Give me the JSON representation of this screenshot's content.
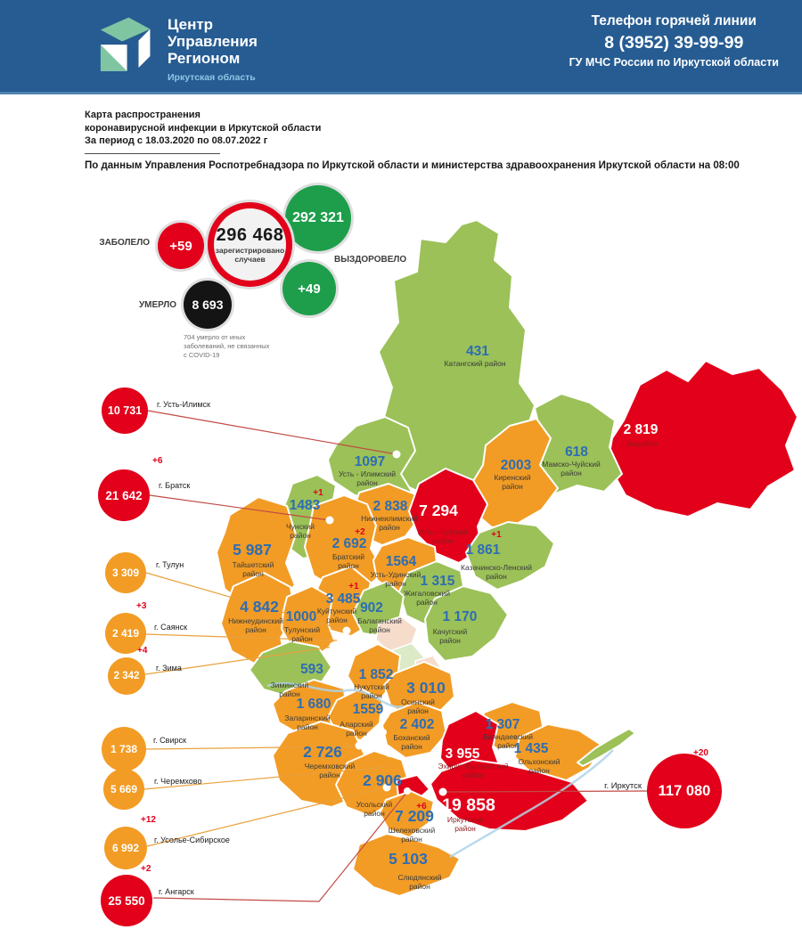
{
  "header": {
    "logo": {
      "title": "Центр|Управления|Регионом",
      "subtitle": "Иркутская область"
    },
    "hotline": {
      "label": "Телефон горячей линии",
      "phone": "8 (3952) 39-99-99",
      "agency": "ГУ МЧС России по Иркутской области"
    }
  },
  "intro": {
    "title": "Карта распространения|коронавирусной инфекции в Иркутской области|За период с 18.03.2020 по 08.07.2022 г",
    "source": "По данным Управления Роспотребнадзора по Иркутской области и министерства здравоохранения Иркутской области на 08:00"
  },
  "stats": {
    "infected": {
      "label": "ЗАБОЛЕЛО",
      "delta": "+59"
    },
    "registered": {
      "value": "296 468",
      "caption_line1": "зарегистрировано",
      "caption_line2": "случаев"
    },
    "recovered": {
      "label": "ВЫЗДОРОВЕЛО",
      "value": "292 321",
      "delta": "+49"
    },
    "died": {
      "label": "УМЕРЛО",
      "value": "8 693",
      "note": "704 умерло от иных|заболеваний, не связанных|с COVID-19"
    }
  },
  "cities": [
    {
      "name": "г. Усть-Илимск",
      "value": "10 731",
      "delta": "",
      "level": "red"
    },
    {
      "name": "г. Братск",
      "value": "21 642",
      "delta": "+6",
      "level": "red"
    },
    {
      "name": "г. Тулун",
      "value": "3 309",
      "delta": "",
      "level": "orange"
    },
    {
      "name": "г. Саянск",
      "value": "2 419",
      "delta": "+3",
      "level": "orange"
    },
    {
      "name": "г. Зима",
      "value": "2 342",
      "delta": "+4",
      "level": "orange"
    },
    {
      "name": "г. Свирск",
      "value": "1 738",
      "delta": "",
      "level": "orange"
    },
    {
      "name": "г. Черемхово",
      "value": "5 669",
      "delta": "",
      "level": "orange"
    },
    {
      "name": "г. Усолье-Сибирское",
      "value": "6 992",
      "delta": "+12",
      "level": "orange"
    },
    {
      "name": "г. Ангарск",
      "value": "25 550",
      "delta": "+2",
      "level": "red"
    },
    {
      "name": "г. Иркутск",
      "value": "117 080",
      "delta": "+20",
      "level": "red"
    }
  ],
  "map": {
    "districts": [
      {
        "name": "Катангский район",
        "value": "431",
        "delta": "",
        "level": "green"
      },
      {
        "name": "г. Бодайбо",
        "value": "2 819",
        "delta": "",
        "level": "red"
      },
      {
        "name": "Мамско-Чуйский|район",
        "value": "618",
        "delta": "",
        "level": "green"
      },
      {
        "name": "Киренский|район",
        "value": "2003",
        "delta": "",
        "level": "orange"
      },
      {
        "name": "Усть - Илимский|район",
        "value": "1097",
        "delta": "",
        "level": "green"
      },
      {
        "name": "Чунский|район",
        "value": "1483",
        "delta": "+1",
        "level": "green"
      },
      {
        "name": "Нижнеилимский|район",
        "value": "2 838",
        "delta": "",
        "level": "orange"
      },
      {
        "name": "Усть - Кутский|район",
        "value": "7 294",
        "delta": "",
        "level": "red"
      },
      {
        "name": "Казачинско-Ленский|район",
        "value": "1 861",
        "delta": "+1",
        "level": "green"
      },
      {
        "name": "Братский|район",
        "value": "2 692",
        "delta": "+2",
        "level": "orange"
      },
      {
        "name": "Тайшетский|район",
        "value": "5 987",
        "delta": "",
        "level": "orange"
      },
      {
        "name": "Усть-Удинский|район",
        "value": "1564",
        "delta": "",
        "level": "orange"
      },
      {
        "name": "Жигаловский|район",
        "value": "1 315",
        "delta": "",
        "level": "green"
      },
      {
        "name": "Куйтунский|район",
        "value": "3 485",
        "delta": "+1",
        "level": "orange"
      },
      {
        "name": "Балаганский|район",
        "value": "902",
        "delta": "",
        "level": "green"
      },
      {
        "name": "Качугский|район",
        "value": "1 170",
        "delta": "",
        "level": "green"
      },
      {
        "name": "Нижнеудинский|район",
        "value": "4 842",
        "delta": "",
        "level": "orange"
      },
      {
        "name": "Тулунский|район",
        "value": "1000",
        "delta": "",
        "level": "orange"
      },
      {
        "name": "Зиминский|район",
        "value": "593",
        "delta": "",
        "level": "green"
      },
      {
        "name": "Нукутский|район",
        "value": "1 852",
        "delta": "",
        "level": "orange"
      },
      {
        "name": "Осинский|район",
        "value": "3 010",
        "delta": "",
        "level": "orange"
      },
      {
        "name": "Заларинский|район",
        "value": "1 680",
        "delta": "",
        "level": "orange"
      },
      {
        "name": "Аларский|район",
        "value": "1559",
        "delta": "",
        "level": "orange"
      },
      {
        "name": "Боханский|район",
        "value": "2 402",
        "delta": "",
        "level": "orange"
      },
      {
        "name": "Баяндаевский|район",
        "value": "1 307",
        "delta": "",
        "level": "orange"
      },
      {
        "name": "Ольхонский|район",
        "value": "1 435",
        "delta": "",
        "level": "orange"
      },
      {
        "name": "Эхирит-Булагатский|район",
        "value": "3 955",
        "delta": "",
        "level": "red"
      },
      {
        "name": "Черемховский|район",
        "value": "2 726",
        "delta": "",
        "level": "orange"
      },
      {
        "name": "Усольский|район",
        "value": "2 906",
        "delta": "",
        "level": "orange"
      },
      {
        "name": "Шелеховский|район",
        "value": "7 209",
        "delta": "+6",
        "level": "orange"
      },
      {
        "name": "Иркутский|район",
        "value": "19 858",
        "delta": "",
        "level": "red"
      },
      {
        "name": "Слюдянский|район",
        "value": "5 103",
        "delta": "",
        "level": "orange"
      }
    ]
  },
  "colors": {
    "header_blue": "#265C92",
    "map_green": "#9BC158",
    "map_orange": "#F29C25",
    "map_red": "#E2001A",
    "stat_green": "#1E9E4B",
    "stat_black": "#141414",
    "value_blue": "#2E6DB4",
    "delta_red": "#E2001A"
  }
}
